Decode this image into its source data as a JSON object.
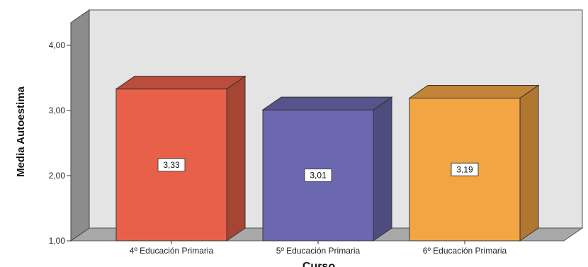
{
  "chart_data": {
    "type": "bar",
    "style": "3d",
    "categories": [
      "4º Educación Primaria",
      "5º Educación Primaria",
      "6º Educación Primaria"
    ],
    "values": [
      3.33,
      3.01,
      3.19
    ],
    "data_labels": [
      "3,33",
      "3,01",
      "3,19"
    ],
    "bar_colors": [
      "#e8604a",
      "#6c68b0",
      "#f3a543"
    ],
    "xlabel": "Curso",
    "ylabel": "Media Autoestima",
    "ylim": [
      1.0,
      4.4
    ],
    "yticks": [
      1.0,
      2.0,
      3.0,
      4.0
    ],
    "ytick_labels": [
      "1,00",
      "2,00",
      "3,00",
      "4,00"
    ],
    "grid": false,
    "background": "#e4e4e4"
  }
}
